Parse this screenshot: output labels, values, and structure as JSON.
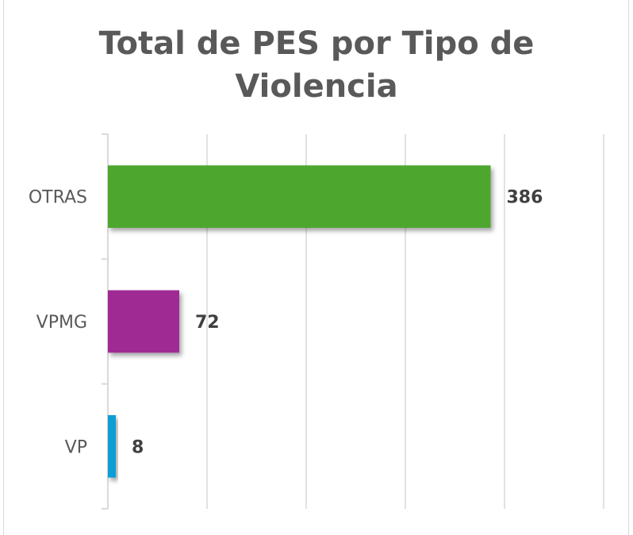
{
  "chart_data": {
    "type": "bar",
    "orientation": "horizontal",
    "title_lines": [
      "Total de PES por Tipo de",
      "Violencia"
    ],
    "categories": [
      "OTRAS",
      "VPMG",
      "VP"
    ],
    "values": [
      386,
      72,
      8
    ],
    "data_labels": [
      "386",
      "72",
      "8"
    ],
    "colors": [
      "#4EA72E",
      "#A02B93",
      "#0F9ED5"
    ],
    "xlim": [
      0,
      500
    ],
    "x_grid_step": 100,
    "grid": true,
    "x_tick_labels_shown": false,
    "legend": "none"
  }
}
